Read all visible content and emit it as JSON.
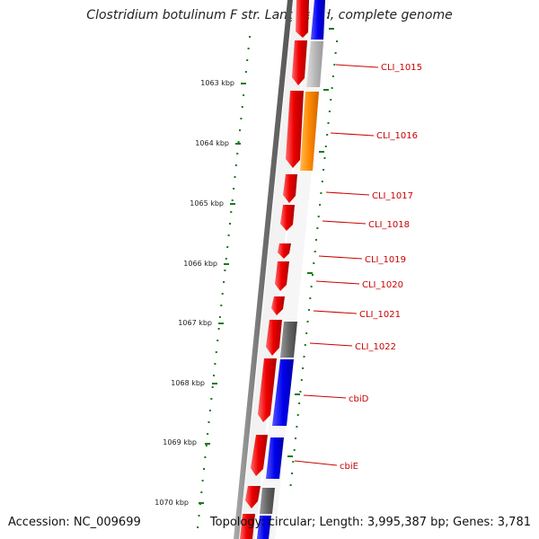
{
  "title": "Clostridium botulinum F str. Langeland, complete genome",
  "footer": {
    "accession": "Accession: NC_009699",
    "stats": "Topology: circular; Length: 3,995,387 bp; Genes: 3,781"
  },
  "colors": {
    "backbone": "#6e6e6e",
    "ticks": "#1a7a1a",
    "forward_gene": "#ee0000",
    "label": "#cc0000",
    "blue": "#0000ee",
    "gray_dark": "#666666",
    "gray_light": "#b8b8b8",
    "orange": "#ff8800"
  },
  "scale_labels": [
    "1063 kbp",
    "1064 kbp",
    "1065 kbp",
    "1066 kbp",
    "1067 kbp",
    "1068 kbp",
    "1069 kbp",
    "1070 kbp"
  ],
  "gene_labels": [
    "CLI_1015",
    "CLI_1016",
    "CLI_1017",
    "CLI_1018",
    "CLI_1019",
    "CLI_1020",
    "CLI_1021",
    "CLI_1022",
    "cbiD",
    "cbiE"
  ]
}
